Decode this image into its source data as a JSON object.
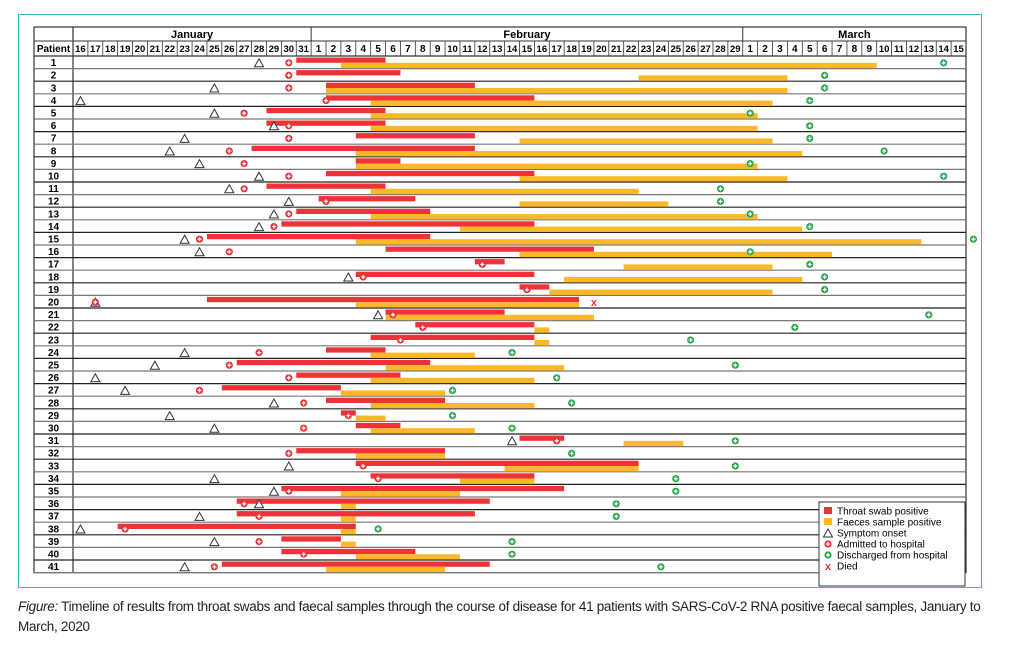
{
  "caption": {
    "label": "Figure:",
    "text": "Timeline of results from throat swabs and faecal samples through the course of disease for 41 patients with SARS-CoV-2 RNA positive faecal samples, January to March, 2020"
  },
  "chart_data": {
    "type": "timeline",
    "title": "",
    "row_header": "Patient",
    "months": [
      {
        "name": "January",
        "days": [
          16,
          17,
          18,
          19,
          20,
          21,
          22,
          23,
          24,
          25,
          26,
          27,
          28,
          29,
          30,
          31
        ]
      },
      {
        "name": "February",
        "days": [
          1,
          2,
          3,
          4,
          5,
          6,
          7,
          8,
          9,
          10,
          11,
          12,
          13,
          14,
          15,
          16,
          17,
          18,
          19,
          20,
          21,
          22,
          23,
          24,
          25,
          26,
          27,
          28,
          29
        ]
      },
      {
        "name": "March",
        "days": [
          1,
          2,
          3,
          4,
          5,
          6,
          7,
          8,
          9,
          10,
          11,
          12,
          13,
          14,
          15
        ]
      }
    ],
    "day_index_note": "0 = Jan 16, 15 = Jan 31, 16 = Feb 1, 44 = Feb 29, 45 = Mar 1, 59 = Mar 15",
    "colors": {
      "throat": "#ee3338",
      "faeces": "#fbb829",
      "admitted": "#ee3338",
      "discharged": "#2aa64a",
      "symptom": "#333333",
      "died": "#ee3338"
    },
    "legend": [
      {
        "key": "throat",
        "label": "Throat swab positive"
      },
      {
        "key": "faeces",
        "label": "Faeces sample positive"
      },
      {
        "key": "symptom",
        "label": "Symptom onset"
      },
      {
        "key": "admitted",
        "label": "Admitted to hospital"
      },
      {
        "key": "discharged",
        "label": "Discharged from hospital"
      },
      {
        "key": "died",
        "label": "Died"
      }
    ],
    "patients": [
      {
        "id": "1",
        "symptom": 12,
        "admitted": 14,
        "throat": [
          15,
          21
        ],
        "faeces": [
          18,
          54
        ],
        "discharged": 58
      },
      {
        "id": "2",
        "symptom": null,
        "admitted": 14,
        "throat": [
          15,
          22
        ],
        "faeces": [
          38,
          48
        ],
        "discharged": 50
      },
      {
        "id": "3",
        "symptom": 9,
        "admitted": 14,
        "throat": [
          17,
          27
        ],
        "faeces": [
          17,
          48
        ],
        "discharged": 50
      },
      {
        "id": "4",
        "symptom": 0,
        "admitted": 16.5,
        "throat": [
          17,
          31
        ],
        "faeces": [
          20,
          47
        ],
        "discharged": 49
      },
      {
        "id": "5",
        "symptom": 9,
        "admitted": 11,
        "throat": [
          13,
          21
        ],
        "faeces": [
          20,
          46
        ],
        "discharged": 45
      },
      {
        "id": "6",
        "symptom": 13,
        "admitted": 14,
        "throat": [
          13,
          21
        ],
        "faeces": [
          20,
          46
        ],
        "discharged": 49
      },
      {
        "id": "7",
        "symptom": 7,
        "admitted": 14,
        "throat": [
          19,
          27
        ],
        "faeces": [
          30,
          47
        ],
        "discharged": 49
      },
      {
        "id": "8",
        "symptom": 6,
        "admitted": 10,
        "throat": [
          12,
          27
        ],
        "faeces": [
          19,
          49
        ],
        "discharged": 54
      },
      {
        "id": "9",
        "symptom": 8,
        "admitted": 11,
        "throat": [
          19,
          22
        ],
        "faeces": [
          19,
          46
        ],
        "discharged": 45
      },
      {
        "id": "10",
        "symptom": 12,
        "admitted": 14,
        "throat": [
          17,
          31
        ],
        "faeces": [
          30,
          48
        ],
        "discharged": 58
      },
      {
        "id": "11",
        "symptom": 10,
        "admitted": 11,
        "throat": [
          13,
          21
        ],
        "faeces": [
          20,
          38
        ],
        "discharged": 43
      },
      {
        "id": "12",
        "symptom": 14,
        "admitted": 16.5,
        "throat": [
          16.5,
          23
        ],
        "faeces": [
          30,
          40
        ],
        "discharged": 43
      },
      {
        "id": "13",
        "symptom": 13,
        "admitted": 14,
        "throat": [
          15,
          24
        ],
        "faeces": [
          20,
          46
        ],
        "discharged": 45
      },
      {
        "id": "14",
        "symptom": 12,
        "admitted": 13,
        "throat": [
          14,
          31
        ],
        "faeces": [
          26,
          49
        ],
        "discharged": 49
      },
      {
        "id": "15",
        "symptom": 7,
        "admitted": 8,
        "throat": [
          9,
          24
        ],
        "faeces": [
          19,
          57
        ],
        "discharged": 60
      },
      {
        "id": "16",
        "symptom": 8,
        "admitted": 10,
        "throat": [
          21,
          35
        ],
        "faeces": [
          30,
          51
        ],
        "discharged": 45
      },
      {
        "id": "17",
        "symptom": null,
        "admitted": 27,
        "throat": [
          27,
          29
        ],
        "faeces": [
          37,
          47
        ],
        "discharged": 49
      },
      {
        "id": "18",
        "symptom": 18,
        "admitted": 19,
        "throat": [
          19,
          31
        ],
        "faeces": [
          33,
          49
        ],
        "discharged": 50
      },
      {
        "id": "19",
        "symptom": null,
        "admitted": 30,
        "throat": [
          30,
          32
        ],
        "faeces": [
          32,
          47
        ],
        "discharged": 50
      },
      {
        "id": "20",
        "symptom": 1,
        "admitted": 1,
        "throat": [
          9,
          34
        ],
        "faeces": [
          19,
          34
        ],
        "died": 34.5
      },
      {
        "id": "21",
        "symptom": 20,
        "admitted": 21,
        "throat": [
          21,
          29
        ],
        "faeces": [
          21,
          35
        ],
        "discharged": 57
      },
      {
        "id": "22",
        "symptom": null,
        "admitted": 23,
        "throat": [
          23,
          31
        ],
        "faeces": [
          31,
          32
        ],
        "discharged": 48
      },
      {
        "id": "23",
        "symptom": null,
        "admitted": 21.5,
        "throat": [
          20,
          31
        ],
        "faeces": [
          31,
          32
        ],
        "discharged": 41
      },
      {
        "id": "24",
        "symptom": 7,
        "admitted": 12,
        "throat": [
          17,
          21
        ],
        "faeces": [
          20,
          27
        ],
        "discharged": 29
      },
      {
        "id": "25",
        "symptom": 5,
        "admitted": 10,
        "throat": [
          11,
          24
        ],
        "faeces": [
          21,
          33
        ],
        "discharged": 44
      },
      {
        "id": "26",
        "symptom": 1,
        "admitted": 14,
        "throat": [
          15,
          22
        ],
        "faeces": [
          20,
          31
        ],
        "discharged": 32
      },
      {
        "id": "27",
        "symptom": 3,
        "admitted": 8,
        "throat": [
          10,
          18
        ],
        "faeces": [
          18,
          25
        ],
        "discharged": 25
      },
      {
        "id": "28",
        "symptom": 13,
        "admitted": 15,
        "throat": [
          17,
          25
        ],
        "faeces": [
          20,
          31
        ],
        "discharged": 33
      },
      {
        "id": "29",
        "symptom": 6,
        "admitted": 18,
        "throat": [
          18,
          19
        ],
        "faeces": [
          19,
          21
        ],
        "discharged": 25
      },
      {
        "id": "30",
        "symptom": 9,
        "admitted": 15,
        "throat": [
          19,
          22
        ],
        "faeces": [
          20,
          27
        ],
        "discharged": 29
      },
      {
        "id": "31",
        "symptom": 29,
        "admitted": 32,
        "throat": [
          30,
          33
        ],
        "faeces": [
          37,
          41
        ],
        "discharged": 44
      },
      {
        "id": "32",
        "symptom": null,
        "admitted": 14,
        "throat": [
          15,
          25
        ],
        "faeces": [
          19,
          25
        ],
        "discharged": 33
      },
      {
        "id": "33",
        "symptom": 14,
        "admitted": 19,
        "throat": [
          19,
          38
        ],
        "faeces": [
          29,
          38
        ],
        "discharged": 44
      },
      {
        "id": "34",
        "symptom": 9,
        "admitted": 20,
        "throat": [
          20,
          31
        ],
        "faeces": [
          26,
          31
        ],
        "discharged": 40
      },
      {
        "id": "35",
        "symptom": 13,
        "admitted": 14,
        "throat": [
          14,
          33
        ],
        "faeces": [
          18,
          26
        ],
        "discharged": 40
      },
      {
        "id": "36",
        "symptom": 12,
        "admitted": 11,
        "throat": [
          11,
          28
        ],
        "faeces": [
          18,
          19
        ],
        "discharged": 36
      },
      {
        "id": "37",
        "symptom": 8,
        "admitted": 12,
        "throat": [
          11,
          27
        ],
        "faeces": [
          18,
          19
        ],
        "discharged": 36
      },
      {
        "id": "38",
        "symptom": 0,
        "admitted": 3,
        "throat": [
          3,
          19
        ],
        "faeces": [
          18,
          19
        ],
        "discharged": 20
      },
      {
        "id": "39",
        "symptom": 9,
        "admitted": 12,
        "throat": [
          14,
          18
        ],
        "faeces": [
          18,
          19
        ],
        "discharged": 29
      },
      {
        "id": "40",
        "symptom": null,
        "admitted": 15,
        "throat": [
          14,
          23
        ],
        "faeces": [
          19,
          26
        ],
        "discharged": 29
      },
      {
        "id": "41",
        "symptom": 7,
        "admitted": 9,
        "throat": [
          10,
          28
        ],
        "faeces": [
          17,
          25
        ],
        "discharged": 39
      }
    ]
  }
}
